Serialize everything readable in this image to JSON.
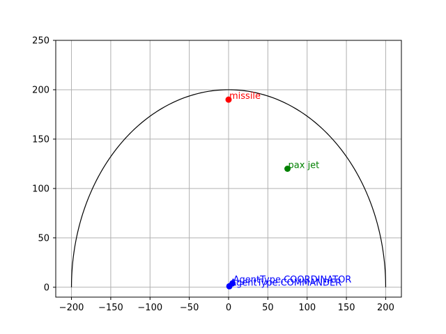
{
  "chart_data": {
    "type": "scatter",
    "title": "",
    "xlabel": "",
    "ylabel": "",
    "xlim": [
      -220,
      220
    ],
    "ylim": [
      -10,
      250
    ],
    "xticks": [
      -200,
      -150,
      -100,
      -50,
      0,
      50,
      100,
      150,
      200
    ],
    "yticks": [
      0,
      50,
      100,
      150,
      200,
      250
    ],
    "xtick_labels": [
      "−200",
      "−150",
      "−100",
      "−50",
      "0",
      "50",
      "100",
      "150",
      "200"
    ],
    "ytick_labels": [
      "0",
      "50",
      "100",
      "150",
      "200",
      "250"
    ],
    "grid": true,
    "boundary": {
      "shape": "semicircle",
      "center": [
        0,
        0
      ],
      "radius": 200,
      "color": "#000000"
    },
    "points": [
      {
        "label": "missile",
        "x": 0,
        "y": 190,
        "color": "#ff0000"
      },
      {
        "label": "pax jet",
        "x": 75,
        "y": 120,
        "color": "#008000"
      },
      {
        "label": "AgentType.COORDINATOR",
        "x": 5,
        "y": 4,
        "color": "#0000ff"
      },
      {
        "label": "AgentType.COMMANDER",
        "x": 1,
        "y": 1,
        "color": "#0000ff"
      }
    ]
  }
}
